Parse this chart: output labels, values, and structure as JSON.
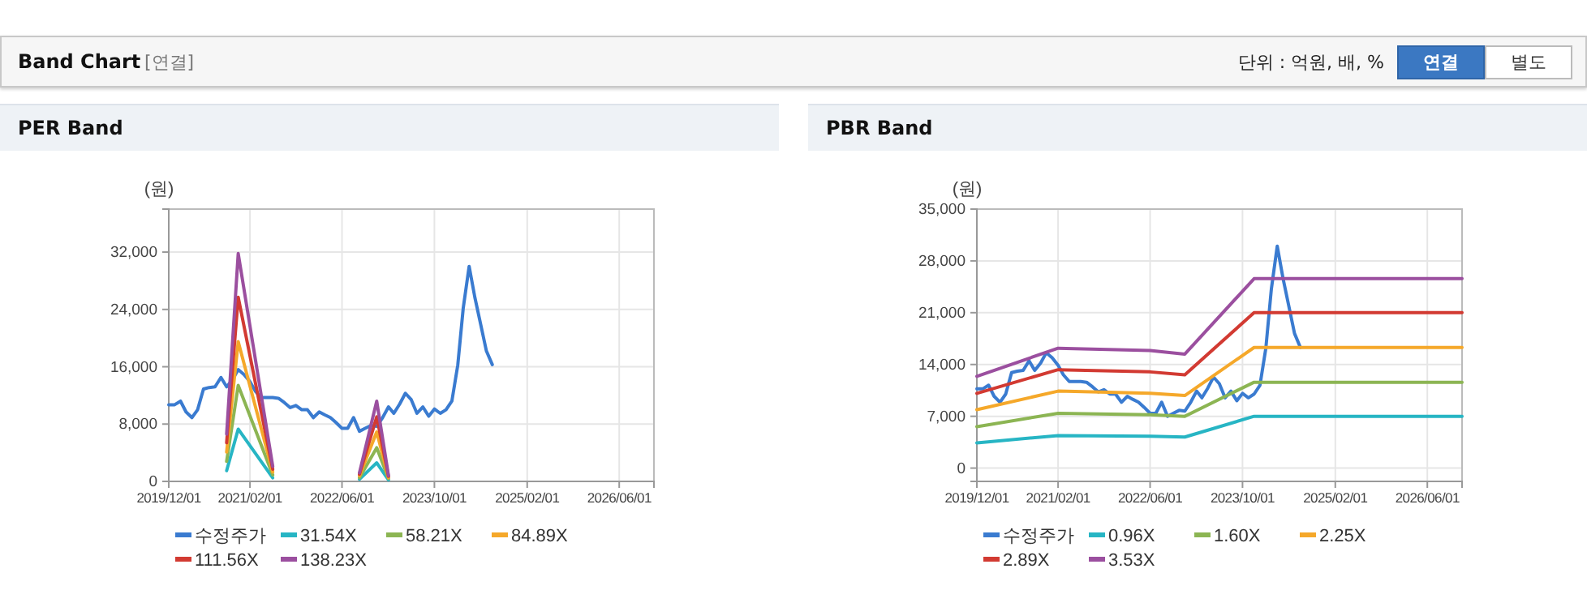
{
  "chart_data": [
    {
      "type": "other",
      "title": "Band Chart",
      "annotations": [
        "[연결]",
        "단위 : 억원, 배, %",
        "연결",
        "별도"
      ]
    },
    {
      "type": "line",
      "title": "PER Band",
      "ylabel": "(원)",
      "grid": true,
      "legend": "bottom",
      "marker": "none",
      "x": [
        "2019-12-01",
        "2020-01-01",
        "2020-02-01",
        "2020-03-01",
        "2020-04-01",
        "2020-05-01",
        "2020-06-01",
        "2020-07-01",
        "2020-08-01",
        "2020-09-01",
        "2020-10-01",
        "2020-11-01",
        "2020-12-01",
        "2021-01-01",
        "2021-02-01",
        "2021-03-01",
        "2021-04-01",
        "2021-05-01",
        "2021-06-01",
        "2021-07-01",
        "2021-08-01",
        "2021-09-01",
        "2021-10-01",
        "2021-11-01",
        "2021-12-01",
        "2022-01-01",
        "2022-02-01",
        "2022-03-01",
        "2022-04-01",
        "2022-05-01",
        "2022-06-01",
        "2022-07-01",
        "2022-08-01",
        "2022-09-01",
        "2022-10-01",
        "2022-11-01",
        "2022-12-01",
        "2023-01-01",
        "2023-02-01",
        "2023-03-01",
        "2023-04-01",
        "2023-05-01",
        "2023-06-01",
        "2023-07-01",
        "2023-08-01",
        "2023-09-01",
        "2023-10-01",
        "2023-11-01",
        "2023-12-01",
        "2024-01-01",
        "2024-02-01",
        "2024-03-01",
        "2024-04-01",
        "2024-05-01",
        "2024-06-01",
        "2024-07-01",
        "2024-08-01"
      ],
      "xlim": [
        "2019-12-01",
        "2026-12-01"
      ],
      "xticks": [
        {
          "value": "2019-12-01",
          "label": "2019/12/01"
        },
        {
          "value": "2021-02-01",
          "label": "2021/02/01"
        },
        {
          "value": "2022-06-01",
          "label": "2022/06/01"
        },
        {
          "value": "2023-10-01",
          "label": "2023/10/01"
        },
        {
          "value": "2025-02-01",
          "label": "2025/02/01"
        },
        {
          "value": "2026-06-01",
          "label": "2026/06/01"
        }
      ],
      "ylim": [
        0,
        38000
      ],
      "yticks": [
        0,
        {
          "value": 8000,
          "label": "8,000"
        },
        {
          "value": 16000,
          "label": "16,000"
        },
        {
          "value": 24000,
          "label": "24,000"
        },
        {
          "value": 32000,
          "label": "32,000"
        }
      ],
      "series": [
        {
          "name": "수정주가",
          "color": "#3a7bd0",
          "values": [
            10700,
            10700,
            11200,
            9700,
            8900,
            10000,
            12900,
            13100,
            13200,
            14500,
            13200,
            14200,
            15600,
            14900,
            13900,
            12600,
            11700,
            11700,
            11700,
            11600,
            11000,
            10300,
            10600,
            10000,
            10000,
            8900,
            9700,
            9300,
            8900,
            8200,
            7400,
            7400,
            8900,
            7000,
            7400,
            7800,
            7700,
            8900,
            10400,
            9500,
            10800,
            12300,
            11400,
            9500,
            10400,
            9100,
            10100,
            9500,
            10000,
            11200,
            16200,
            24200,
            30000,
            25700,
            21900,
            18200,
            16300
          ]
        },
        {
          "name": "31.54X",
          "color": "#27b5c4",
          "x": [
            "2020-10-01",
            "2020-12-01",
            "2021-06-01",
            "2022-01-01",
            "2022-09-01",
            "2022-12-01",
            "2023-02-01"
          ],
          "values": [
            1500,
            7300,
            500,
            null,
            300,
            2600,
            200
          ]
        },
        {
          "name": "58.21X",
          "color": "#8cb553",
          "x": [
            "2020-10-01",
            "2020-12-01",
            "2021-06-01",
            "2022-01-01",
            "2022-09-01",
            "2022-12-01",
            "2023-02-01"
          ],
          "values": [
            2800,
            13400,
            900,
            null,
            500,
            4700,
            400
          ]
        },
        {
          "name": "84.89X",
          "color": "#f5a82a",
          "x": [
            "2020-10-01",
            "2020-12-01",
            "2021-06-01",
            "2022-01-01",
            "2022-09-01",
            "2022-12-01",
            "2023-02-01"
          ],
          "values": [
            4100,
            19500,
            1300,
            null,
            800,
            6900,
            500
          ]
        },
        {
          "name": "111.56X",
          "color": "#d23a32",
          "x": [
            "2020-10-01",
            "2020-12-01",
            "2021-06-01",
            "2022-01-01",
            "2022-09-01",
            "2022-12-01",
            "2023-02-01"
          ],
          "values": [
            5400,
            25700,
            1700,
            null,
            1000,
            9000,
            700
          ]
        },
        {
          "name": "138.23X",
          "color": "#9b4f9f",
          "x": [
            "2020-10-01",
            "2020-12-01",
            "2021-06-01",
            "2022-01-01",
            "2022-09-01",
            "2022-12-01",
            "2023-02-01"
          ],
          "values": [
            6600,
            31800,
            2100,
            null,
            1200,
            11200,
            800
          ]
        }
      ]
    },
    {
      "type": "line",
      "title": "PBR Band",
      "ylabel": "(원)",
      "grid": true,
      "legend": "bottom",
      "marker": "none",
      "x": [
        "2019-12-01",
        "2020-01-01",
        "2020-02-01",
        "2020-03-01",
        "2020-04-01",
        "2020-05-01",
        "2020-06-01",
        "2020-07-01",
        "2020-08-01",
        "2020-09-01",
        "2020-10-01",
        "2020-11-01",
        "2020-12-01",
        "2021-01-01",
        "2021-02-01",
        "2021-03-01",
        "2021-04-01",
        "2021-05-01",
        "2021-06-01",
        "2021-07-01",
        "2021-08-01",
        "2021-09-01",
        "2021-10-01",
        "2021-11-01",
        "2021-12-01",
        "2022-01-01",
        "2022-02-01",
        "2022-03-01",
        "2022-04-01",
        "2022-05-01",
        "2022-06-01",
        "2022-07-01",
        "2022-08-01",
        "2022-09-01",
        "2022-10-01",
        "2022-11-01",
        "2022-12-01",
        "2023-01-01",
        "2023-02-01",
        "2023-03-01",
        "2023-04-01",
        "2023-05-01",
        "2023-06-01",
        "2023-07-01",
        "2023-08-01",
        "2023-09-01",
        "2023-10-01",
        "2023-11-01",
        "2023-12-01",
        "2024-01-01",
        "2024-02-01",
        "2024-03-01",
        "2024-04-01",
        "2024-05-01",
        "2024-06-01",
        "2024-07-01",
        "2024-08-01"
      ],
      "xlim": [
        "2019-12-01",
        "2026-12-01"
      ],
      "xticks": [
        {
          "value": "2019-12-01",
          "label": "2019/12/01"
        },
        {
          "value": "2021-02-01",
          "label": "2021/02/01"
        },
        {
          "value": "2022-06-01",
          "label": "2022/06/01"
        },
        {
          "value": "2023-10-01",
          "label": "2023/10/01"
        },
        {
          "value": "2025-02-01",
          "label": "2025/02/01"
        },
        {
          "value": "2026-06-01",
          "label": "2026/06/01"
        }
      ],
      "ylim": [
        -1800,
        35000
      ],
      "yticks": [
        0,
        {
          "value": 7000,
          "label": "7,000"
        },
        {
          "value": 14000,
          "label": "14,000"
        },
        {
          "value": 21000,
          "label": "21,000"
        },
        {
          "value": 28000,
          "label": "28,000"
        },
        {
          "value": 35000,
          "label": "35,000"
        }
      ],
      "series": [
        {
          "name": "수정주가",
          "color": "#3a7bd0",
          "values": [
            10700,
            10700,
            11200,
            9700,
            8900,
            10000,
            12900,
            13100,
            13200,
            14500,
            13200,
            14200,
            15600,
            14900,
            13900,
            12600,
            11700,
            11700,
            11700,
            11600,
            11000,
            10300,
            10600,
            10000,
            10000,
            8900,
            9700,
            9300,
            8900,
            8200,
            7400,
            7400,
            8900,
            7000,
            7400,
            7800,
            7700,
            8900,
            10400,
            9500,
            10800,
            12300,
            11400,
            9500,
            10400,
            9100,
            10100,
            9500,
            10000,
            11200,
            16200,
            24200,
            30000,
            25700,
            21900,
            18200,
            16300
          ]
        },
        {
          "name": "0.96X",
          "color": "#27b5c4",
          "x": [
            "2019-12-01",
            "2021-02-01",
            "2022-06-01",
            "2022-12-01",
            "2023-12-01",
            "2026-12-01"
          ],
          "values": [
            3400,
            4400,
            4300,
            4200,
            7000,
            7000
          ]
        },
        {
          "name": "1.60X",
          "color": "#8cb553",
          "x": [
            "2019-12-01",
            "2021-02-01",
            "2022-06-01",
            "2022-12-01",
            "2023-12-01",
            "2026-12-01"
          ],
          "values": [
            5600,
            7400,
            7200,
            7000,
            11600,
            11600
          ]
        },
        {
          "name": "2.25X",
          "color": "#f5a82a",
          "x": [
            "2019-12-01",
            "2021-02-01",
            "2022-06-01",
            "2022-12-01",
            "2023-12-01",
            "2026-12-01"
          ],
          "values": [
            7900,
            10400,
            10100,
            9800,
            16300,
            16300
          ]
        },
        {
          "name": "2.89X",
          "color": "#d23a32",
          "x": [
            "2019-12-01",
            "2021-02-01",
            "2022-06-01",
            "2022-12-01",
            "2023-12-01",
            "2026-12-01"
          ],
          "values": [
            10100,
            13300,
            13000,
            12600,
            21000,
            21000
          ]
        },
        {
          "name": "3.53X",
          "color": "#9b4f9f",
          "x": [
            "2019-12-01",
            "2021-02-01",
            "2022-06-01",
            "2022-12-01",
            "2023-12-01",
            "2026-12-01"
          ],
          "values": [
            12400,
            16200,
            15900,
            15400,
            25600,
            25600
          ]
        }
      ]
    }
  ]
}
